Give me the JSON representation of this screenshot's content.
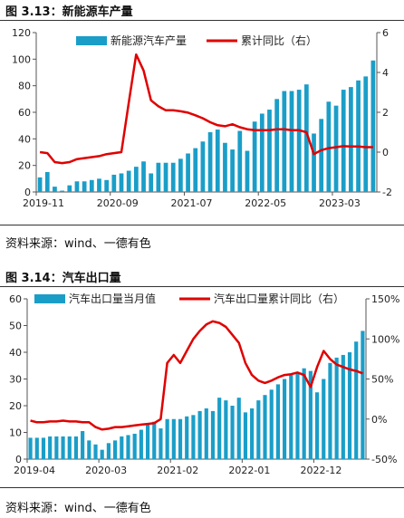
{
  "charts": [
    {
      "caption": "图 3.13：新能源车产量",
      "source": "资料来源：wind、一德有色",
      "legend_bar": "新能源汽车产量",
      "legend_line": "累计同比（右）"
    },
    {
      "caption": "图 3.14：汽车出口量",
      "source": "资料来源：wind、一德有色",
      "legend_bar": "汽车出口量当月值",
      "legend_line": "汽车出口量累计同比（右）"
    }
  ],
  "chart_data": [
    {
      "type": "bar",
      "bar_color": "#1a9ec8",
      "line_color": "#e00000",
      "ylim": [
        0,
        120
      ],
      "yticks": [
        0,
        20,
        40,
        60,
        80,
        100,
        120
      ],
      "y2lim": [
        -2,
        6
      ],
      "y2ticks": [
        -2,
        0,
        2,
        4,
        6
      ],
      "xtick_labels": [
        "2019-11",
        "2020-09",
        "2021-07",
        "2022-05",
        "2023-03"
      ],
      "xtick_index": [
        0,
        10,
        20,
        30,
        40
      ],
      "series": [
        {
          "name": "新能源汽车产量",
          "axis": "left",
          "values": [
            11,
            15,
            4,
            1,
            5,
            8,
            8,
            9,
            10,
            9,
            13,
            14,
            16,
            19,
            23,
            14,
            22,
            22,
            22,
            25,
            29,
            33,
            38,
            45,
            47,
            37,
            32,
            46,
            31,
            53,
            59,
            62,
            70,
            76,
            76,
            77,
            81,
            44,
            55,
            68,
            65,
            77,
            79,
            84,
            87,
            99
          ]
        },
        {
          "name": "累计同比（右）",
          "axis": "right",
          "values": [
            0,
            -0.05,
            -0.5,
            -0.55,
            -0.5,
            -0.35,
            -0.3,
            -0.25,
            -0.2,
            -0.1,
            -0.05,
            0,
            2.5,
            4.9,
            4.1,
            2.6,
            2.3,
            2.1,
            2.1,
            2.05,
            1.98,
            1.85,
            1.7,
            1.5,
            1.35,
            1.3,
            1.4,
            1.25,
            1.15,
            1.1,
            1.1,
            1.1,
            1.15,
            1.15,
            1.1,
            1.1,
            1.0,
            -0.1,
            0.1,
            0.2,
            0.25,
            0.3,
            0.28,
            0.28,
            0.25,
            0.25
          ]
        }
      ]
    },
    {
      "type": "bar",
      "bar_color": "#1a9ec8",
      "line_color": "#e00000",
      "ylim": [
        0,
        60
      ],
      "yticks": [
        0,
        10,
        20,
        30,
        40,
        50,
        60
      ],
      "y2lim": [
        -50,
        150
      ],
      "y2ticks": [
        -50,
        0,
        50,
        100,
        150
      ],
      "y2_suffix": "%",
      "xtick_labels": [
        "2019-04",
        "2020-03",
        "2021-02",
        "2022-01",
        "2022-12"
      ],
      "xtick_index": [
        0,
        11,
        22,
        33,
        44
      ],
      "series": [
        {
          "name": "汽车出口量当月值",
          "axis": "left",
          "values": [
            8,
            8,
            8,
            8.5,
            8.5,
            8.5,
            8.5,
            8.5,
            10.5,
            7,
            5.5,
            3.5,
            6,
            7,
            8.5,
            9,
            9.5,
            11,
            13,
            14,
            11.5,
            15,
            15,
            15,
            16,
            16.5,
            18,
            19,
            18,
            23,
            22,
            20,
            23,
            17.5,
            19,
            22,
            24,
            26,
            28,
            30,
            32,
            32,
            34,
            33,
            25,
            30,
            36,
            38,
            39,
            40,
            44,
            48
          ]
        },
        {
          "name": "汽车出口量累计同比（右）",
          "axis": "right",
          "values": [
            -2,
            -4,
            -4,
            -3,
            -3,
            -2,
            -3,
            -3,
            -4,
            -4,
            -10,
            -13,
            -12,
            -10,
            -10,
            -9,
            -8,
            -7,
            -6,
            -5,
            0,
            70,
            80,
            70,
            85,
            100,
            110,
            118,
            122,
            120,
            115,
            105,
            95,
            70,
            55,
            48,
            45,
            48,
            52,
            55,
            56,
            58,
            55,
            40,
            65,
            85,
            75,
            68,
            65,
            62,
            60,
            57
          ]
        }
      ]
    }
  ]
}
